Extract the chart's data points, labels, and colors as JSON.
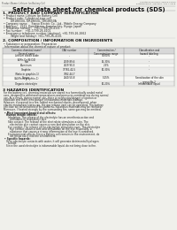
{
  "bg_color": "#f0f0eb",
  "header_top_left": "Product Name: Lithium Ion Battery Cell",
  "header_top_right": "Substance Number: SRRSR-00010\nEstablishment / Revision: Dec.7.2018",
  "main_title": "Safety data sheet for chemical products (SDS)",
  "section1_title": "1. PRODUCT AND COMPANY IDENTIFICATION",
  "section1_items": [
    "Product name: Lithium Ion Battery Cell",
    "Product code: Cylindrical-type cell\n      DR18650U, DR18650L, DR18650A",
    "Company name:    Sanyo Electric Co., Ltd., Mobile Energy Company",
    "Address:   2221  Kamikaizen, Sumoto-City, Hyogo, Japan",
    "Telephone number:   +81-(799)-26-4111",
    "Fax number:   +81-1799-26-4101",
    "Emergency telephone number (daytime): +81-799-26-2662\n      (Night and holiday): +81-799-26-4101"
  ],
  "section2_title": "2. COMPOSITION / INFORMATION ON INGREDIENTS",
  "section2_intro": "Substance or preparation: Preparation",
  "section2_sub": "Information about the chemical nature of product:",
  "table_headers": [
    "Common chemical name/\nSeveral name",
    "CAS number",
    "Concentration /\nConcentration range",
    "Classification and\nhazard labeling"
  ],
  "table_rows": [
    [
      "Lithium cobalt oxide\n(LiMn-Co-Ni-O4)",
      "-",
      "30-60%",
      "-"
    ],
    [
      "Iron",
      "7439-89-6",
      "15-30%",
      "-"
    ],
    [
      "Aluminum",
      "7429-90-5",
      "2-6%",
      "-"
    ],
    [
      "Graphite\n(Ratio in graphite-1)\n(Al-Mn in graphite-1)",
      "77782-42-5\n7782-44-7",
      "10-30%",
      "-"
    ],
    [
      "Copper",
      "7440-50-8",
      "5-15%",
      "Sensitization of the skin\ngroup No.2"
    ],
    [
      "Organic electrolyte",
      "-",
      "10-20%",
      "Inflammable liquid"
    ]
  ],
  "section3_title": "3 HAZARDS IDENTIFICATION",
  "section3_paras": [
    "For the battery cell, chemical materials are stored in a hermetically sealed metal case, designed to withstand temperatures and pressures-combinations during normal use. As a result, during normal use, there is no physical danger of ignition or explosion and there is no danger of hazardous materials leakage.",
    "However, if exposed to a fire, added mechanical shocks, decomposed, when electro-mechanical stress can, the gas release vent can be operated. The battery cell case will be breached of fire-patterns, hazardous materials may be released.",
    "Moreover, if heated strongly by the surrounding fire, some gas may be emitted."
  ],
  "section3_bullet1": "Most important hazard and effects:",
  "section3_sub1": "Human health effects:",
  "section3_sub_items": [
    "Inhalation: The release of the electrolyte has an anesthesia action and stimulates in respiratory tract.",
    "Skin contact: The release of the electrolyte stimulates a skin. The electrolyte skin contact causes a sore and stimulation on the skin.",
    "Eye contact: The release of the electrolyte stimulates eyes. The electrolyte eye contact causes a sore and stimulation on the eye. Especially, a substance that causes a strong inflammation of the eye is contained.",
    "Environmental effects: Since a battery cell remains in the environment, do not throw out it into the environment."
  ],
  "section3_bullet2": "Specific hazards:",
  "section3_specific": [
    "If the electrolyte contacts with water, it will generate detrimental hydrogen fluoride.",
    "Since the used electrolyte is inflammable liquid, do not bring close to fire."
  ]
}
